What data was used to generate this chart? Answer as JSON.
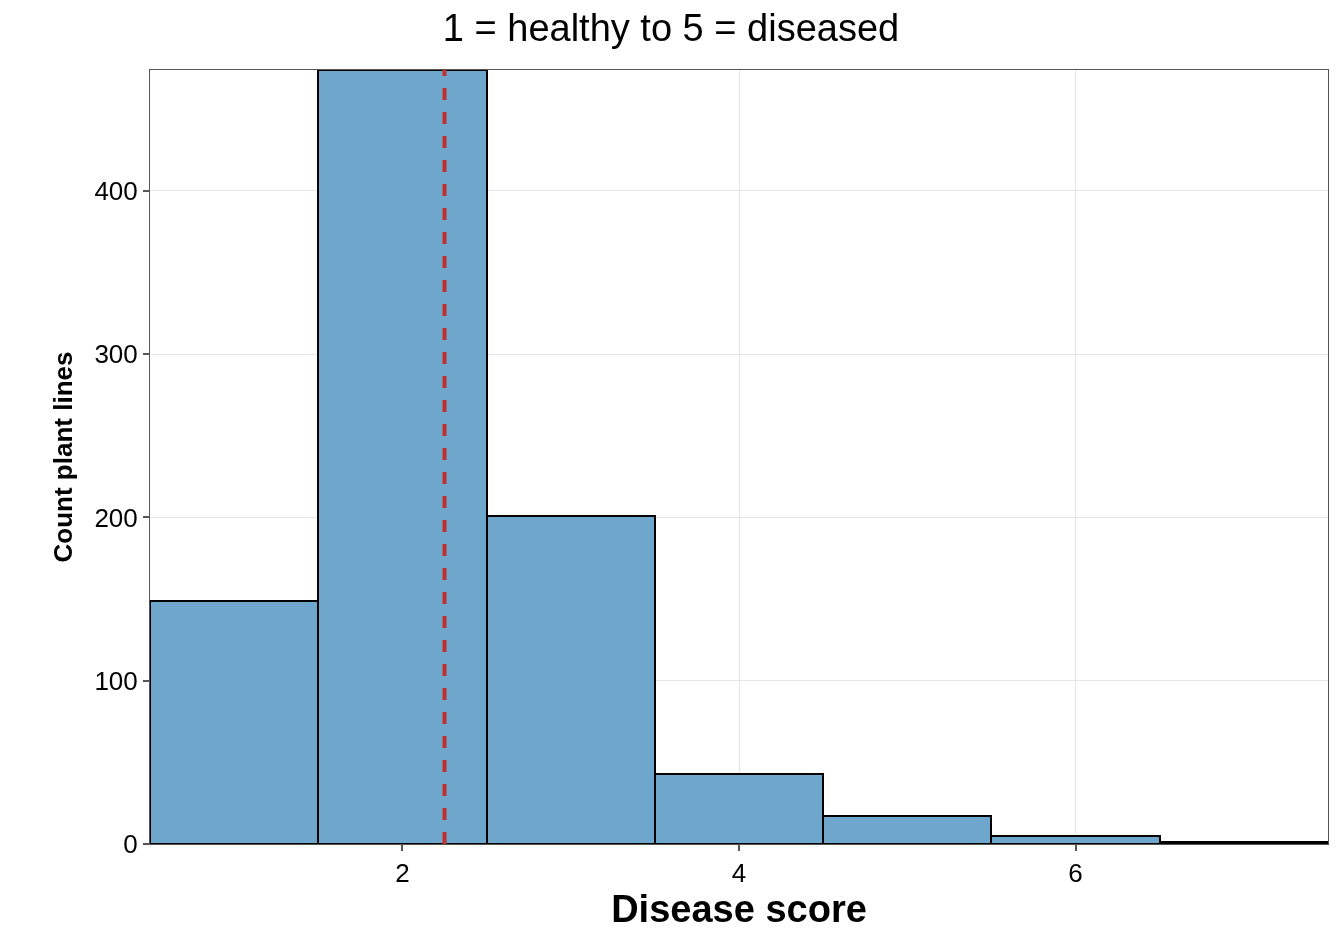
{
  "chart_data": {
    "type": "histogram",
    "title": "1 = healthy to 5 = diseased",
    "xlabel": "Disease score",
    "ylabel": "Count plant lines",
    "bins": [
      0.5,
      1.5,
      2.5,
      3.5,
      4.5,
      5.5,
      6.5,
      7.5
    ],
    "values": [
      149,
      474,
      201,
      43,
      17,
      5,
      1
    ],
    "color": "#6fa6cc",
    "xlim": [
      0.5,
      7.5
    ],
    "xticks": [
      2,
      4,
      6
    ],
    "ylim": [
      0,
      474
    ],
    "yticks": [
      0,
      100,
      200,
      300,
      400
    ],
    "grid": true,
    "ref_lines": [
      {
        "axis": "x",
        "value": 2.25,
        "color": "#c0302e",
        "line_style": "dashed"
      }
    ]
  }
}
